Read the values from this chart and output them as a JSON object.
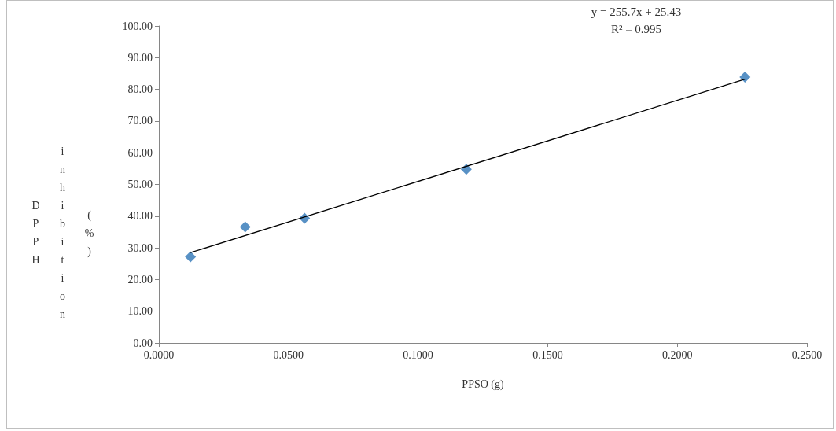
{
  "chart_data": {
    "type": "scatter",
    "xlabel": "PPSO (g)",
    "ylabel": "DPPH inhibition (%)",
    "annotations": [
      "y = 255.7x + 25.43",
      "R² = 0.995"
    ],
    "series": [
      {
        "color": "#2e75b6",
        "marker": "diamond",
        "x": [
          0.0122,
          0.0333,
          0.0562,
          0.1186,
          0.2261
        ],
        "values": [
          27.2,
          36.6,
          39.3,
          54.8,
          83.9
        ]
      },
      {
        "type": "line",
        "color": "#000000",
        "marker": "none",
        "line_style": "solid",
        "x": [
          0.0122,
          0.2261
        ],
        "values": [
          28.5,
          83.2
        ]
      }
    ],
    "xlim": [
      0,
      0.25
    ],
    "xticks": [
      {
        "value": 0,
        "label": "0.0000"
      },
      {
        "value": 0.05,
        "label": "0.0500"
      },
      {
        "value": 0.1,
        "label": "0.1000"
      },
      {
        "value": 0.15,
        "label": "0.1500"
      },
      {
        "value": 0.2,
        "label": "0.2000"
      },
      {
        "value": 0.25,
        "label": "0.2500"
      }
    ],
    "ylim": [
      0,
      100
    ],
    "yticks": [
      {
        "value": 0,
        "label": "0.00"
      },
      {
        "value": 10,
        "label": "10.00"
      },
      {
        "value": 20,
        "label": "20.00"
      },
      {
        "value": 30,
        "label": "30.00"
      },
      {
        "value": 40,
        "label": "40.00"
      },
      {
        "value": 50,
        "label": "50.00"
      },
      {
        "value": 60,
        "label": "60.00"
      },
      {
        "value": 70,
        "label": "70.00"
      },
      {
        "value": 80,
        "label": "80.00"
      },
      {
        "value": 90,
        "label": "90.00"
      },
      {
        "value": 100,
        "label": "100.00"
      }
    ],
    "grid": false
  }
}
